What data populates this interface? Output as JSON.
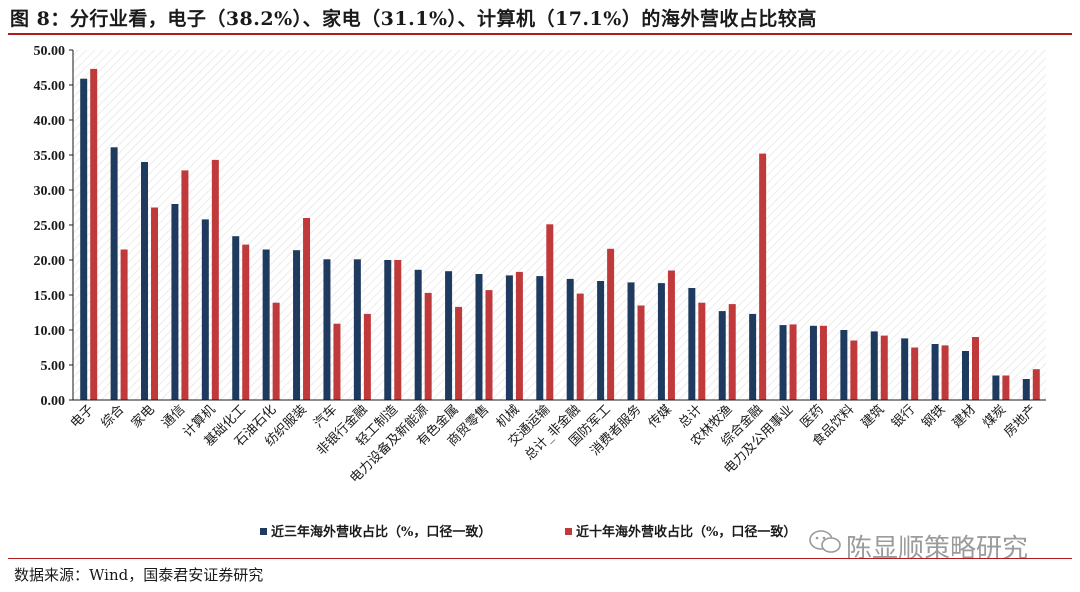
{
  "title": "图 8：分行业看，电子（38.2%）、家电（31.1%）、计算机（17.1%）的海外营收占比较高",
  "source": "数据来源：Wind，国泰君安证券研究",
  "watermark": "陈显顺策略研究",
  "colors": {
    "series1": "#1f3a5f",
    "series2": "#c0393b",
    "rule": "#b01c1c"
  },
  "chart_data": {
    "type": "bar",
    "ylim": [
      0,
      50
    ],
    "yticks": [
      "0.00",
      "5.00",
      "10.00",
      "15.00",
      "20.00",
      "25.00",
      "30.00",
      "35.00",
      "40.00",
      "45.00",
      "50.00"
    ],
    "categories": [
      "电子",
      "综合",
      "家电",
      "通信",
      "计算机",
      "基础化工",
      "石油石化",
      "纺织服装",
      "汽车",
      "非银行金融",
      "轻工制造",
      "电力设备及新能源",
      "有色金属",
      "商贸零售",
      "机械",
      "交通运输",
      "总计_非金融",
      "国防军工",
      "消费者服务",
      "传媒",
      "总计",
      "农林牧渔",
      "综合金融",
      "电力及公用事业",
      "医药",
      "食品饮料",
      "建筑",
      "银行",
      "钢铁",
      "建材",
      "煤炭",
      "房地产"
    ],
    "series": [
      {
        "name": "近三年海外营收占比（%，口径一致）",
        "values": [
          45.9,
          36.1,
          34.0,
          28.0,
          25.8,
          23.4,
          21.5,
          21.4,
          20.1,
          20.1,
          20.0,
          18.6,
          18.4,
          18.0,
          17.8,
          17.7,
          17.3,
          17.0,
          16.8,
          16.7,
          16.0,
          12.7,
          12.3,
          10.7,
          10.6,
          10.0,
          9.8,
          8.8,
          8.0,
          7.0,
          3.5,
          3.0
        ]
      },
      {
        "name": "近十年海外营收占比（%，口径一致）",
        "values": [
          47.3,
          21.5,
          27.5,
          32.8,
          34.3,
          22.2,
          13.9,
          26.0,
          10.9,
          12.3,
          20.0,
          15.3,
          13.3,
          15.7,
          18.3,
          25.1,
          15.2,
          21.6,
          13.5,
          18.5,
          13.9,
          13.7,
          35.2,
          10.8,
          10.6,
          8.5,
          9.2,
          7.5,
          7.8,
          9.0,
          3.5,
          4.4
        ]
      }
    ],
    "legend_position": "bottom"
  }
}
